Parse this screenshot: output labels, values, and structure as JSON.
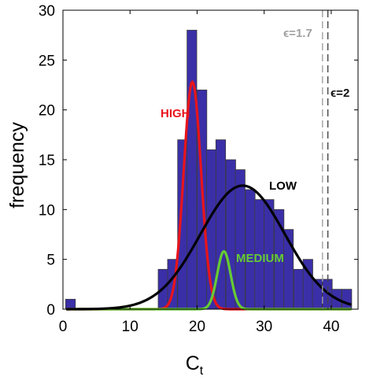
{
  "chart_data": {
    "type": "bar",
    "xlabel": "C",
    "xlabel_sub": "t",
    "ylabel": "frequency",
    "xlim": [
      0,
      44
    ],
    "ylim": [
      0,
      30
    ],
    "xticks": [
      "0",
      "10",
      "20",
      "30",
      "40"
    ],
    "yticks": [
      "0",
      "5",
      "10",
      "15",
      "20",
      "25",
      "30"
    ],
    "bar_color": "#3b2fa8",
    "histogram": {
      "bin_width": 1.45,
      "bins": [
        {
          "x0": 0.4,
          "value": 1
        },
        {
          "x0": 14.2,
          "value": 4
        },
        {
          "x0": 15.6,
          "value": 5
        },
        {
          "x0": 17.1,
          "value": 17
        },
        {
          "x0": 18.5,
          "value": 28
        },
        {
          "x0": 20.0,
          "value": 22
        },
        {
          "x0": 21.4,
          "value": 16
        },
        {
          "x0": 22.8,
          "value": 17
        },
        {
          "x0": 24.3,
          "value": 15
        },
        {
          "x0": 25.7,
          "value": 14
        },
        {
          "x0": 27.2,
          "value": 12
        },
        {
          "x0": 28.6,
          "value": 11
        },
        {
          "x0": 30.0,
          "value": 11
        },
        {
          "x0": 31.5,
          "value": 10
        },
        {
          "x0": 32.9,
          "value": 8
        },
        {
          "x0": 34.4,
          "value": 4
        },
        {
          "x0": 35.8,
          "value": 5
        },
        {
          "x0": 37.2,
          "value": 3
        },
        {
          "x0": 38.7,
          "value": 3
        },
        {
          "x0": 40.1,
          "value": 2
        },
        {
          "x0": 41.6,
          "value": 2
        }
      ]
    },
    "series": [
      {
        "name": "HIGH",
        "color": "#e8141c",
        "mean": 19.3,
        "sigma": 1.3,
        "peak": 22.8
      },
      {
        "name": "MEDIUM",
        "color": "#66cc33",
        "mean": 24.0,
        "sigma": 1.0,
        "peak": 5.8
      },
      {
        "name": "LOW",
        "color": "#000000",
        "mean": 26.8,
        "sigma": 6.3,
        "peak": 12.4
      }
    ],
    "thresholds": [
      {
        "label": "ϵ=1.7",
        "x": 38.7,
        "color": "#a0a0a0"
      },
      {
        "label": "ϵ=2",
        "x": 39.5,
        "color": "#444444"
      }
    ]
  }
}
